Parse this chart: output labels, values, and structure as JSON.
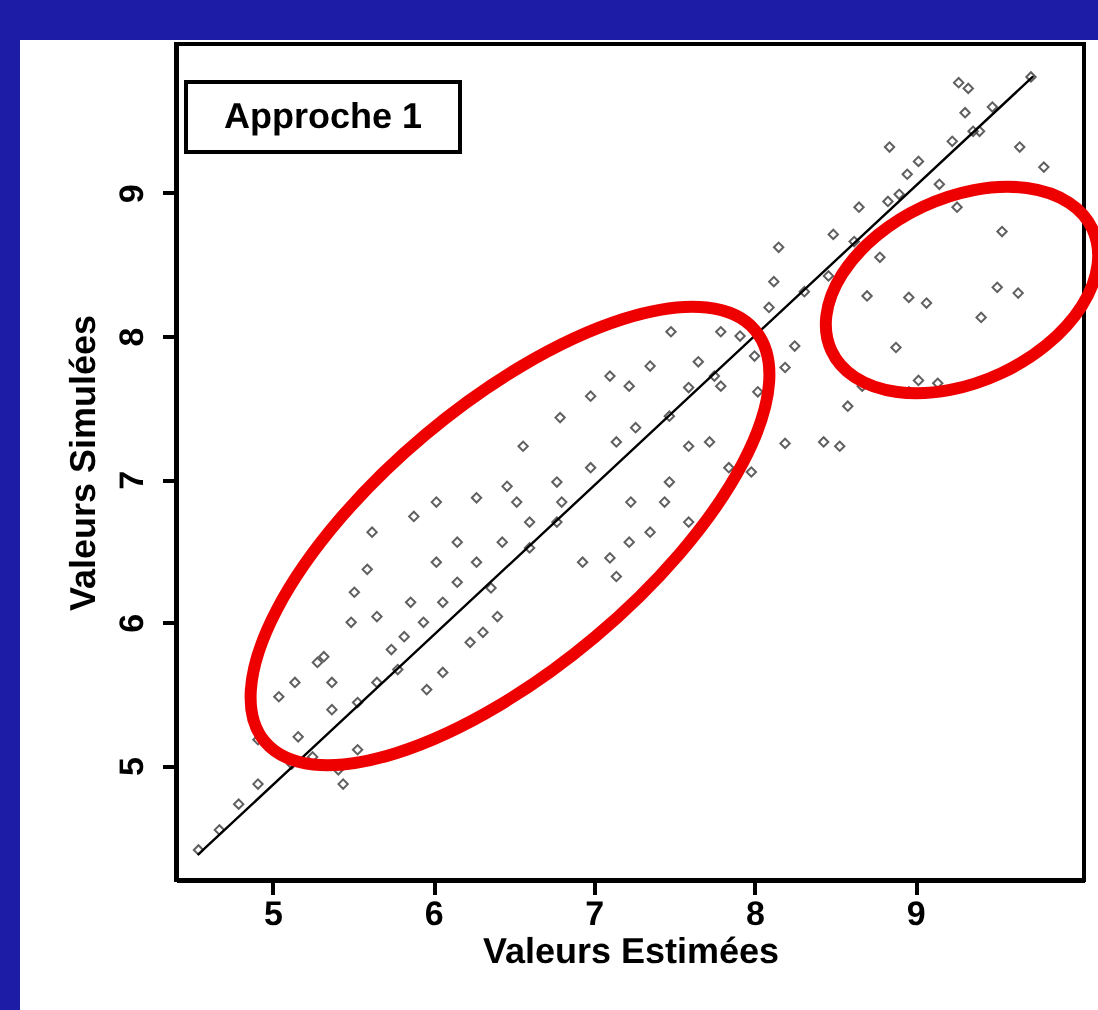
{
  "chart_data": {
    "type": "scatter",
    "xlabel": "Valeurs Estimées",
    "ylabel": "Valeurs Simulées",
    "annotations": [
      "Approche 1"
    ],
    "xlim": [
      4.4,
      10.05
    ],
    "ylim": [
      4.2,
      10.04
    ],
    "xticks": [
      5,
      6,
      7,
      8,
      9
    ],
    "yticks": [
      5,
      6,
      7,
      8,
      9
    ],
    "grid": false,
    "series": [
      {
        "marker": "diamond",
        "color": "#444444",
        "x": [
          9.54,
          9.51,
          9.64,
          9.41,
          8.96,
          9.07,
          8.88,
          9.02,
          9.14,
          8.96,
          8.67,
          8.58,
          8.7,
          9.26,
          9.65,
          9.8,
          9.72,
          9.27,
          9.33,
          9.31,
          8.84,
          8.43,
          8.53,
          8.15,
          8.19,
          8.83,
          9.02,
          9.36,
          8.65,
          8.49,
          8.31,
          8.12,
          8.09,
          8.25,
          8.0,
          8.19,
          7.79,
          7.48,
          7.65,
          7.79,
          8.02,
          7.98,
          7.84,
          7.72,
          7.1,
          7.35,
          8.78,
          9.15,
          8.95,
          8.46,
          6.56,
          6.79,
          6.98,
          7.22,
          7.14,
          7.26,
          7.47,
          7.59,
          7.47,
          7.23,
          6.98,
          6.77,
          6.46,
          6.27,
          6.02,
          5.88,
          5.62,
          5.59,
          5.51,
          5.49,
          5.28,
          5.14,
          5.04,
          5.96,
          6.06,
          6.31,
          6.4,
          6.6,
          6.93,
          7.1,
          7.22,
          7.35,
          7.44,
          7.59,
          7.14,
          6.77,
          6.52,
          4.54,
          4.67,
          4.79,
          4.91,
          4.91,
          5.12,
          5.25,
          5.44,
          5.53,
          5.41,
          5.16,
          5.37,
          5.65,
          5.74,
          5.94,
          6.06,
          6.15,
          6.27,
          6.43,
          6.6,
          6.8,
          5.86,
          6.02,
          6.15,
          6.36,
          6.23,
          5.78,
          5.82,
          5.65,
          5.32,
          5.37,
          5.53,
          7.59,
          7.75,
          7.91,
          8.62,
          8.9,
          9.23,
          9.48,
          9.4
        ],
        "values": [
          8.73,
          8.34,
          8.3,
          8.13,
          8.27,
          8.23,
          7.92,
          7.69,
          7.67,
          7.61,
          7.65,
          7.51,
          8.28,
          8.9,
          9.32,
          9.18,
          9.81,
          9.77,
          9.73,
          9.56,
          9.32,
          7.26,
          7.23,
          8.62,
          7.25,
          8.94,
          9.22,
          9.43,
          8.9,
          8.71,
          8.31,
          8.38,
          8.2,
          7.93,
          7.86,
          7.78,
          8.03,
          8.03,
          7.82,
          7.65,
          7.61,
          7.05,
          7.08,
          7.26,
          7.72,
          7.79,
          8.55,
          9.06,
          9.13,
          8.42,
          7.23,
          7.43,
          7.58,
          7.65,
          7.26,
          7.36,
          7.44,
          7.23,
          6.98,
          6.84,
          7.08,
          6.98,
          6.95,
          6.87,
          6.84,
          6.74,
          6.63,
          6.37,
          6.21,
          6.0,
          5.72,
          5.58,
          5.48,
          5.53,
          5.65,
          5.93,
          6.04,
          6.52,
          6.42,
          6.45,
          6.56,
          6.63,
          6.84,
          6.7,
          6.32,
          6.7,
          6.84,
          4.41,
          4.55,
          4.73,
          4.87,
          5.18,
          5.01,
          5.06,
          4.87,
          5.11,
          4.97,
          5.2,
          5.39,
          5.58,
          5.81,
          6.0,
          6.14,
          6.28,
          6.42,
          6.56,
          6.7,
          6.84,
          6.14,
          6.42,
          6.56,
          6.24,
          5.86,
          5.67,
          5.9,
          6.04,
          5.76,
          5.58,
          5.44,
          7.64,
          7.72,
          8.0,
          8.66,
          8.99,
          9.36,
          9.6,
          9.43
        ]
      },
      {
        "type": "line",
        "color": "#000000",
        "x": [
          4.54,
          9.73
        ],
        "values": [
          4.38,
          9.81
        ]
      }
    ]
  }
}
